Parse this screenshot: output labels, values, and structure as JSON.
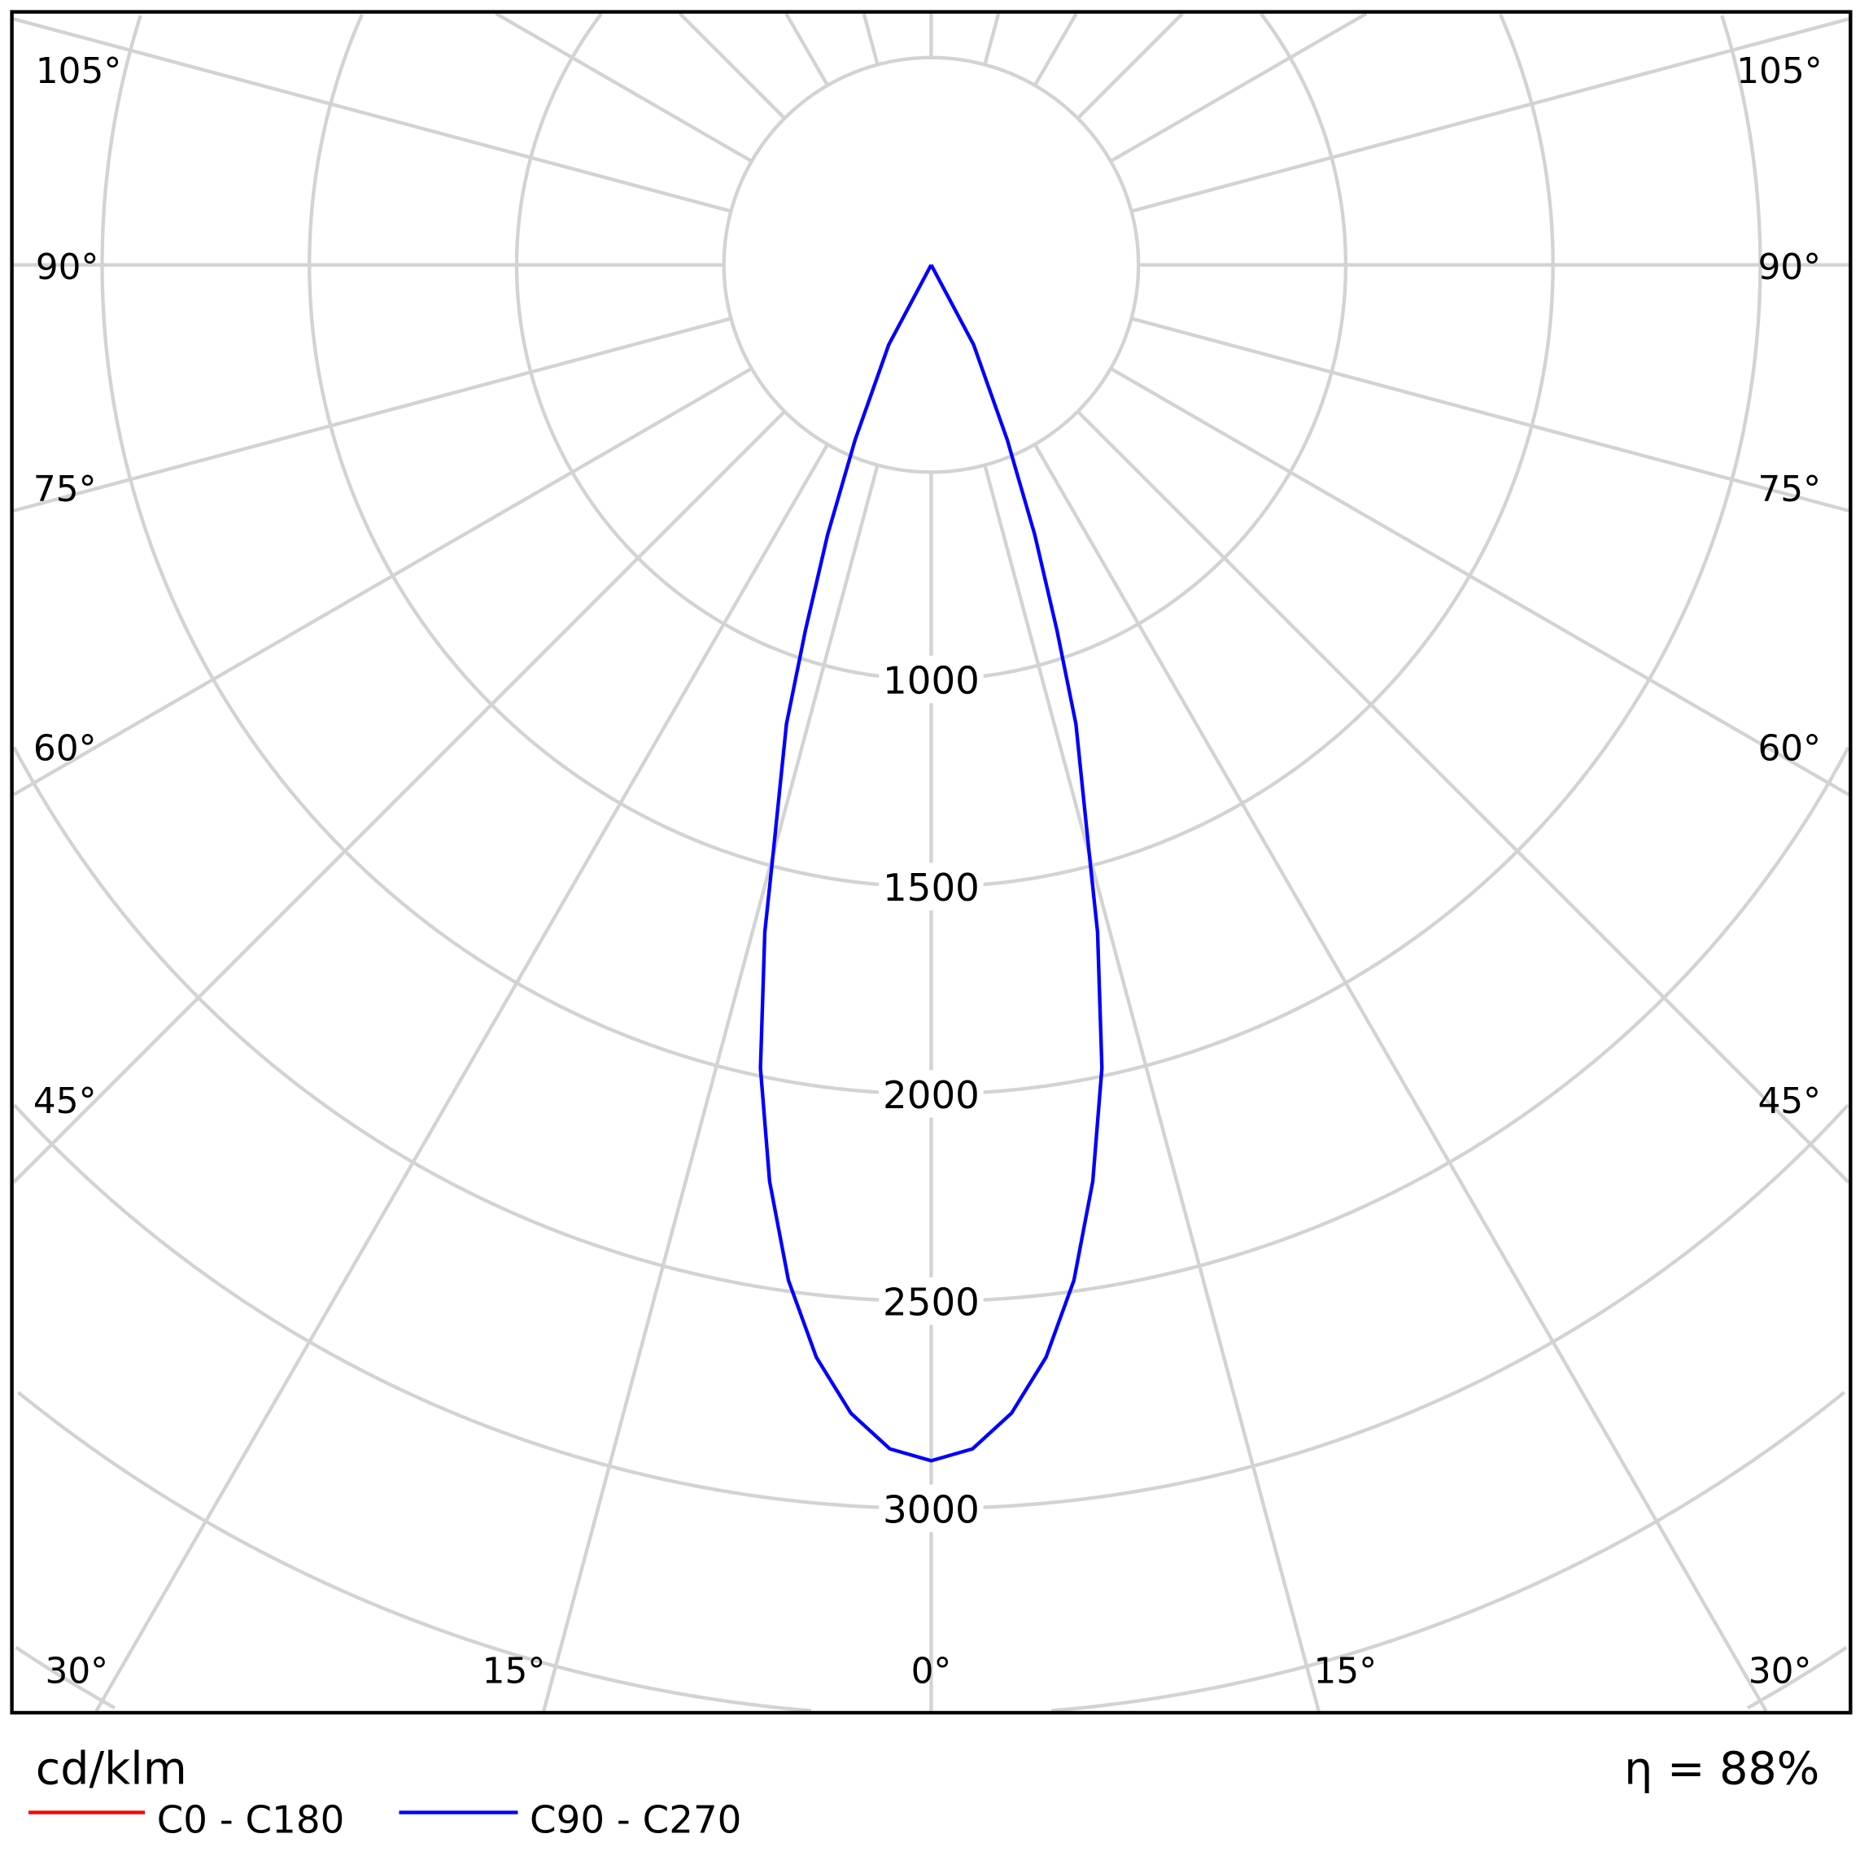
{
  "chart_data": {
    "type": "polar-line",
    "unit_label": "cd/klm",
    "efficiency_label": "η = 88%",
    "radial_ticks": [
      500,
      1000,
      1500,
      2000,
      2500,
      3000,
      3500,
      4000,
      4500
    ],
    "radial_tick_labels": [
      "1000",
      "1500",
      "2000",
      "2500",
      "3000"
    ],
    "radial_label_values": [
      1000,
      1500,
      2000,
      2500,
      3000
    ],
    "angle_labels": {
      "left": [
        "105°",
        "90°",
        "75°",
        "60°",
        "45°",
        "30°",
        "15°"
      ],
      "center": "0°",
      "right": [
        "15°",
        "30°",
        "45°",
        "60°",
        "75°",
        "90°",
        "105°"
      ]
    },
    "angle_step_deg": 15,
    "grid": true,
    "legend_position": "bottom-left",
    "series": [
      {
        "name": "C0 - C180",
        "color": "#ff0000",
        "angles": [],
        "values": []
      },
      {
        "name": "C90 - C270",
        "color": "#0000ff",
        "angles": [
          0,
          2,
          4,
          6,
          8,
          10,
          12,
          14,
          15,
          17.5,
          19,
          21,
          23.5,
          28,
          90
        ],
        "values": [
          2885,
          2858,
          2777,
          2650,
          2474,
          2245,
          1981,
          1659,
          1475,
          1161,
          931,
          697,
          460,
          218,
          0
        ]
      }
    ]
  }
}
